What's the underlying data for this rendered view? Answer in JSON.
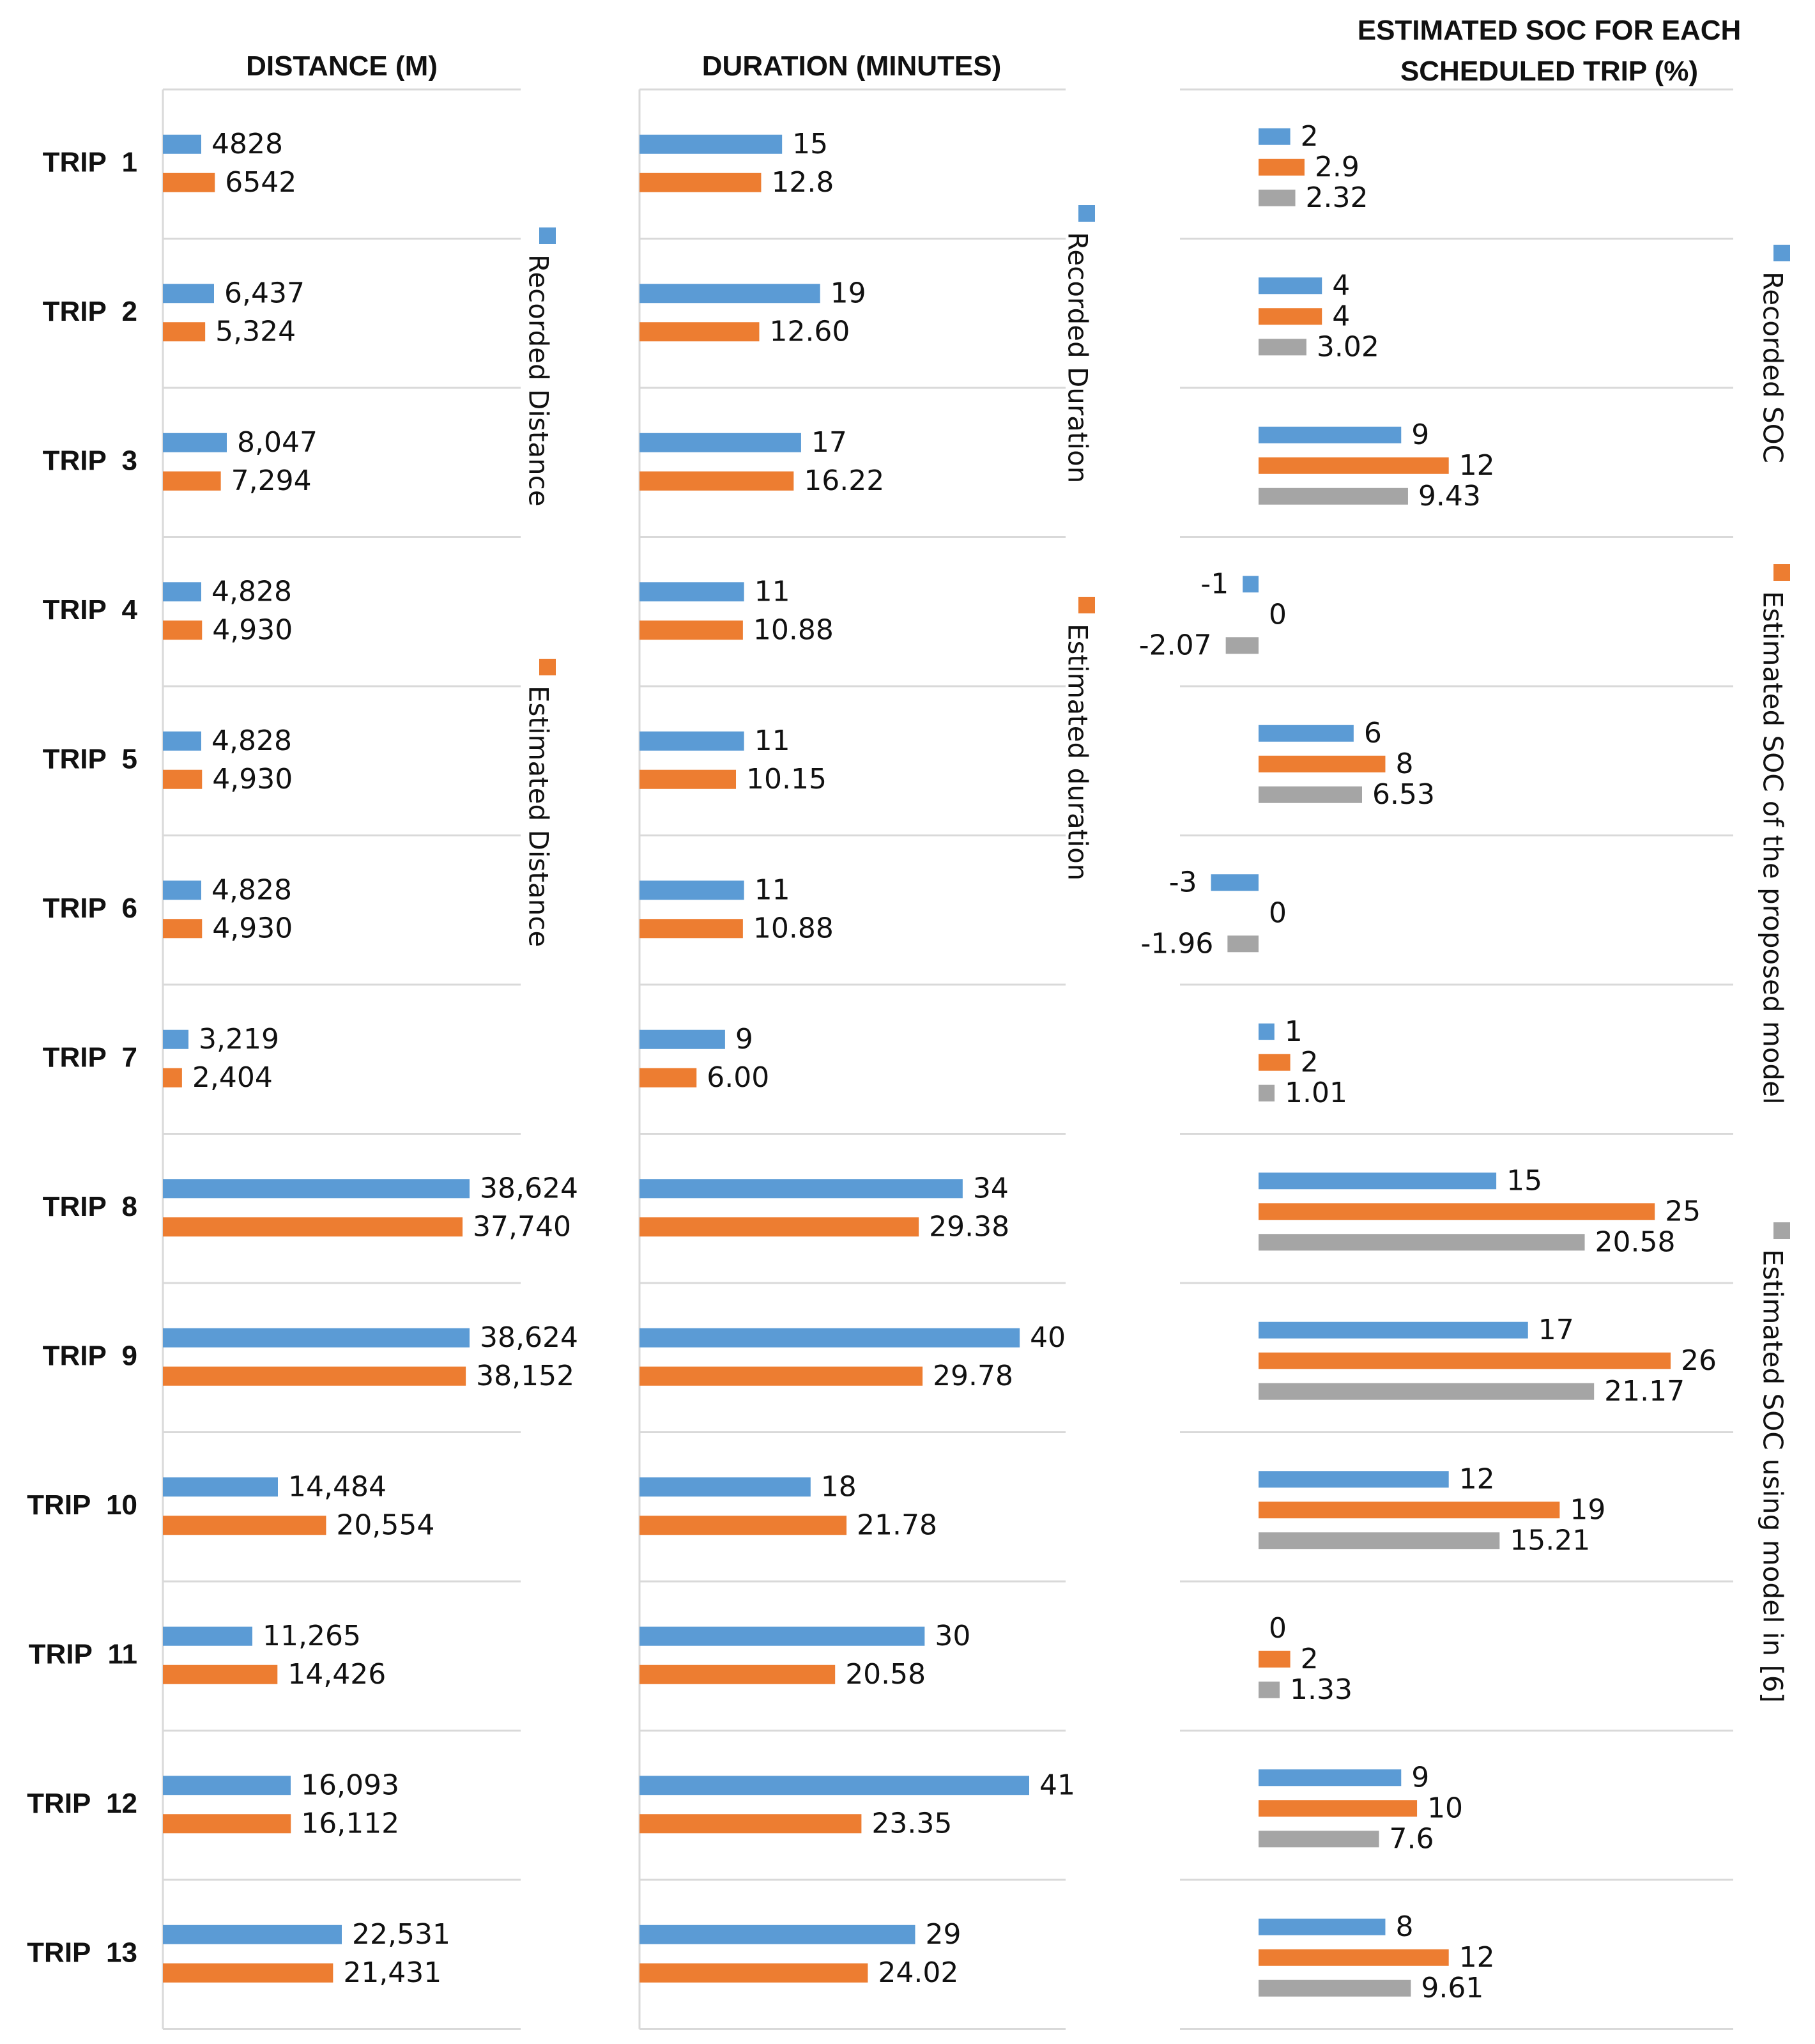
{
  "colors": {
    "recorded": "#5b9bd5",
    "estimated": "#ed7d31",
    "model6": "#a5a5a5"
  },
  "chart_data": [
    {
      "type": "bar",
      "orientation": "horizontal",
      "title": "DISTANCE (M)",
      "categories": [
        "TRIP  1",
        "TRIP  2",
        "TRIP  3",
        "TRIP  4",
        "TRIP  5",
        "TRIP  6",
        "TRIP  7",
        "TRIP  8",
        "TRIP  9",
        "TRIP  10",
        "TRIP  11",
        "TRIP  12",
        "TRIP  13"
      ],
      "series": [
        {
          "name": "Recorded Distance",
          "color": "#5b9bd5",
          "values": [
            4828,
            6437,
            8047,
            4828,
            4828,
            4828,
            3219,
            38624,
            38624,
            14484,
            11265,
            16093,
            22531
          ],
          "labels": [
            "4828",
            "6,437",
            "8,047",
            "4,828",
            "4,828",
            "4,828",
            "3,219",
            "38,624",
            "38,624",
            "14,484",
            "11,265",
            "16,093",
            "22,531"
          ]
        },
        {
          "name": "Estimated Distance",
          "color": "#ed7d31",
          "values": [
            6542,
            5324,
            7294,
            4930,
            4930,
            4930,
            2404,
            37740,
            38152,
            20554,
            14426,
            16112,
            21431
          ],
          "labels": [
            "6542",
            "5,324",
            "7,294",
            "4,930",
            "4,930",
            "4,930",
            "2,404",
            "37,740",
            "38,152",
            "20,554",
            "14,426",
            "16,112",
            "21,431"
          ]
        }
      ],
      "xlim": [
        0,
        38624
      ],
      "legend_position": "right"
    },
    {
      "type": "bar",
      "orientation": "horizontal",
      "title": "DURATION (MINUTES)",
      "categories": [
        "TRIP  1",
        "TRIP  2",
        "TRIP  3",
        "TRIP  4",
        "TRIP  5",
        "TRIP  6",
        "TRIP  7",
        "TRIP  8",
        "TRIP  9",
        "TRIP  10",
        "TRIP  11",
        "TRIP  12",
        "TRIP  13"
      ],
      "series": [
        {
          "name": "Recorded Duration",
          "color": "#5b9bd5",
          "values": [
            15,
            19,
            17,
            11,
            11,
            11,
            9,
            34,
            40,
            18,
            30,
            41,
            29
          ],
          "labels": [
            "15",
            "19",
            "17",
            "11",
            "11",
            "11",
            "9",
            "34",
            "40",
            "18",
            "30",
            "41",
            "29"
          ]
        },
        {
          "name": "Estimated duration",
          "color": "#ed7d31",
          "values": [
            12.8,
            12.6,
            16.22,
            10.88,
            10.15,
            10.88,
            6.0,
            29.38,
            29.78,
            21.78,
            20.58,
            23.35,
            24.02
          ],
          "labels": [
            "12.8",
            "12.60",
            "16.22",
            "10.88",
            "10.15",
            "10.88",
            "6.00",
            "29.38",
            "29.78",
            "21.78",
            "20.58",
            "23.35",
            "24.02"
          ]
        }
      ],
      "xlim": [
        0,
        41
      ],
      "legend_position": "right"
    },
    {
      "type": "bar",
      "orientation": "horizontal",
      "title_lines": [
        "ESTIMATED SOC FOR EACH",
        "SCHEDULED TRIP (%)"
      ],
      "categories": [
        "TRIP  1",
        "TRIP  2",
        "TRIP  3",
        "TRIP  4",
        "TRIP  5",
        "TRIP  6",
        "TRIP  7",
        "TRIP  8",
        "TRIP  9",
        "TRIP  10",
        "TRIP  11",
        "TRIP  12",
        "TRIP  13"
      ],
      "series": [
        {
          "name": "Recorded SOC",
          "color": "#5b9bd5",
          "values": [
            2,
            4,
            9,
            -1,
            6,
            -3,
            1,
            15,
            17,
            12,
            0,
            9,
            8
          ],
          "labels": [
            "2",
            "4",
            "9",
            "-1",
            "6",
            "-3",
            "1",
            "15",
            "17",
            "12",
            "0",
            "9",
            "8"
          ]
        },
        {
          "name": "Estimated SOC of the proposed model",
          "color": "#ed7d31",
          "values": [
            2.9,
            4,
            12,
            0,
            8,
            0,
            2,
            25,
            26,
            19,
            2,
            10,
            12
          ],
          "labels": [
            "2.9",
            "4",
            "12",
            "0",
            "8",
            "0",
            "2",
            "25",
            "26",
            "19",
            "2",
            "10",
            "12"
          ]
        },
        {
          "name": "Estimated SOC using model in [6]",
          "color": "#a5a5a5",
          "values": [
            2.32,
            3.02,
            9.43,
            -2.07,
            6.53,
            -1.96,
            1.01,
            20.58,
            21.17,
            15.21,
            1.33,
            7.6,
            9.61
          ],
          "labels": [
            "2.32",
            "3.02",
            "9.43",
            "-2.07",
            "6.53",
            "-1.96",
            "1.01",
            "20.58",
            "21.17",
            "15.21",
            "1.33",
            "7.6",
            "9.61"
          ]
        }
      ],
      "xlim": [
        -3,
        26
      ],
      "legend_position": "right"
    }
  ]
}
